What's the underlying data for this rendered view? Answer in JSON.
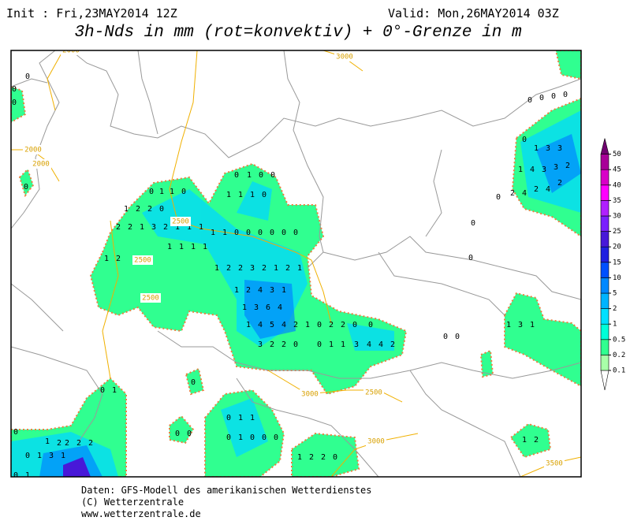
{
  "header": {
    "init": "Init : Fri,23MAY2014 12Z",
    "valid": "Valid: Mon,26MAY2014 03Z",
    "title": "3h-Nds in mm (rot=konvektiv) + 0°-Grenze in m"
  },
  "colorbar": {
    "levels": [
      0.1,
      0.2,
      0.5,
      1,
      2,
      5,
      10,
      15,
      20,
      25,
      30,
      35,
      40,
      45,
      50
    ],
    "colors": [
      "#ffffff",
      "#a8ffa8",
      "#30ff90",
      "#00ffd8",
      "#00e0ff",
      "#00b4ff",
      "#0088ff",
      "#0050ff",
      "#2020e0",
      "#4818d8",
      "#7a20ff",
      "#b020ff",
      "#ff00ff",
      "#d800c8",
      "#a80098",
      "#700070"
    ]
  },
  "contour_labels": [
    "2000",
    "2000",
    "2000",
    "2500",
    "2500",
    "2500",
    "2500",
    "3000",
    "3000",
    "3000",
    "3500"
  ],
  "grid_values": [
    0,
    0,
    0,
    0,
    0,
    1,
    1,
    0,
    1,
    2,
    2,
    0,
    1,
    1,
    1,
    0,
    0,
    1,
    0,
    0,
    2,
    2,
    1,
    3,
    2,
    1,
    1,
    1,
    1,
    1,
    0,
    0,
    0,
    0,
    0,
    0,
    1,
    2,
    1,
    1,
    1,
    1,
    1,
    2,
    2,
    3,
    2,
    1,
    2,
    1,
    1,
    2,
    4,
    3,
    1,
    1,
    3,
    6,
    4,
    1,
    4,
    5,
    4,
    2,
    1,
    0,
    2,
    2,
    0,
    0,
    3,
    2,
    2,
    0,
    0,
    1,
    1,
    3,
    4,
    4,
    2,
    0,
    0,
    0,
    0,
    0,
    2,
    4,
    2,
    4,
    2,
    1,
    4,
    3,
    3,
    2,
    0,
    1,
    3,
    3,
    0,
    0,
    0,
    0,
    1,
    3,
    1,
    1,
    2,
    0,
    1,
    0,
    0,
    0,
    0,
    1,
    1,
    0,
    1,
    0,
    0,
    0,
    1,
    2,
    2,
    0,
    0,
    1,
    3,
    1,
    2,
    2,
    2,
    0,
    1,
    2,
    0,
    1
  ],
  "footer": [
    "Daten: GFS-Modell des amerikanischen Wetterdienstes",
    "(C) Wetterzentrale",
    "www.wetterzentrale.de"
  ]
}
